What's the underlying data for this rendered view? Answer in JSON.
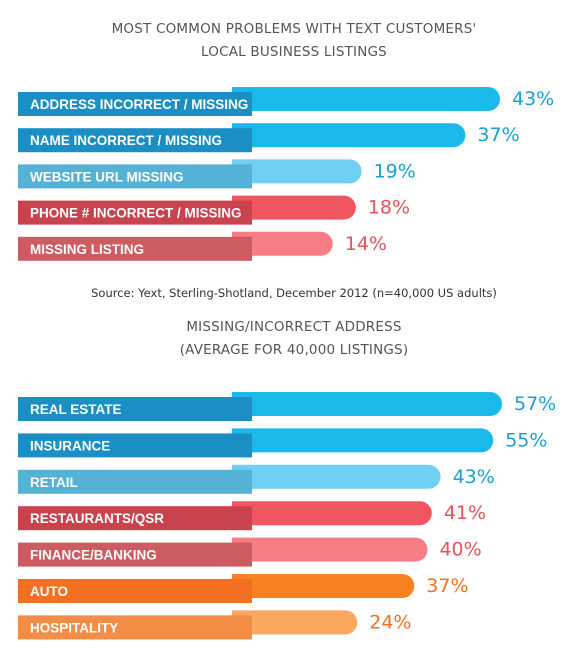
{
  "chart_data": [
    {
      "type": "bar",
      "title_lines": [
        "MOST COMMON PROBLEMS WITH TEXT CUSTOMERS'",
        "LOCAL BUSINESS LISTINGS"
      ],
      "categories": [
        "ADDRESS INCORRECT / MISSING",
        "NAME INCORRECT / MISSING",
        "WEBSITE URL MISSING",
        "PHONE # INCORRECT / MISSING",
        "MISSING LISTING"
      ],
      "values": [
        43,
        37,
        19,
        18,
        14
      ],
      "value_labels": [
        "43%",
        "37%",
        "19%",
        "18%",
        "14%"
      ],
      "colors": [
        "#1bb8ec",
        "#1bb8ec",
        "#6fd0f3",
        "#ef5660",
        "#f57d83"
      ],
      "label_colors": [
        "#1b8fc4",
        "#1b8fc4",
        "#56b1d6",
        "#c9434e",
        "#cc5c61"
      ],
      "value_colors": [
        "#1b9fd6",
        "#1b9fd6",
        "#1b9fd6",
        "#e5525b",
        "#e5525b"
      ]
    },
    {
      "type": "bar",
      "title_lines": [
        "MISSING/INCORRECT ADDRESS",
        "(AVERAGE FOR 40,000 LISTINGS)"
      ],
      "categories": [
        "REAL ESTATE",
        "INSURANCE",
        "RETAIL",
        "RESTAURANTS/QSR",
        "FINANCE/BANKING",
        "AUTO",
        "HOSPITALITY"
      ],
      "values": [
        57,
        55,
        43,
        41,
        40,
        37,
        24
      ],
      "value_labels": [
        "57%",
        "55%",
        "43%",
        "41%",
        "40%",
        "37%",
        "24%"
      ],
      "colors": [
        "#1bb8ec",
        "#1bb8ec",
        "#6fd0f3",
        "#ef5660",
        "#f57d83",
        "#f7821f",
        "#f9a85d"
      ],
      "label_colors": [
        "#1b8fc4",
        "#1b8fc4",
        "#56b1d6",
        "#c9434e",
        "#cc5c61",
        "#f36f21",
        "#f38c45"
      ],
      "value_colors": [
        "#1b9fd6",
        "#1b9fd6",
        "#1b9fd6",
        "#e5525b",
        "#e5525b",
        "#f36f21",
        "#f36f21"
      ]
    }
  ],
  "source": "Source: Yext, Sterling-Shotland, December 2012 (n=40,000 US adults)"
}
